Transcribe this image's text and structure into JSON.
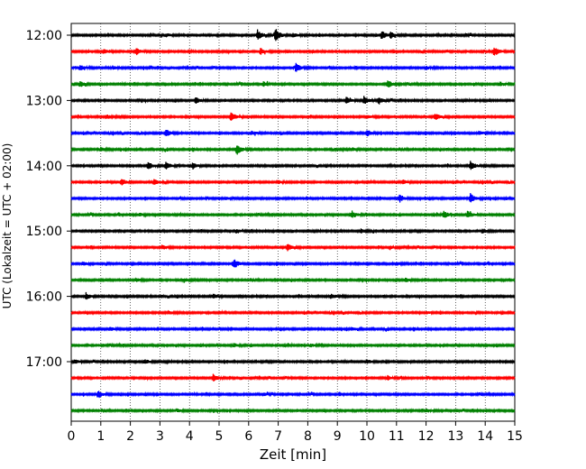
{
  "chart_data": {
    "type": "line",
    "title": "",
    "xlabel": "Zeit  [min]",
    "ylabel": "UTC (Lokalzeit = UTC + 02:00)",
    "xlim": [
      0,
      15
    ],
    "x_ticks": [
      0,
      1,
      2,
      3,
      4,
      5,
      6,
      7,
      8,
      9,
      10,
      11,
      12,
      13,
      14,
      15
    ],
    "y_tick_labels": [
      "12:00",
      "13:00",
      "14:00",
      "15:00",
      "16:00",
      "17:00"
    ],
    "grid": "vertical dotted lines at each minute",
    "colors": [
      "#000000",
      "#ff0000",
      "#0000ff",
      "#008000"
    ],
    "rows": [
      {
        "time": "12:00",
        "color": "#000000",
        "events": [
          [
            6.3,
            0.7
          ],
          [
            6.9,
            1.0
          ],
          [
            10.5,
            0.6
          ],
          [
            10.8,
            0.4
          ],
          [
            7.5,
            0.25
          ],
          [
            3.2,
            0.2
          ]
        ]
      },
      {
        "time": "12:15",
        "color": "#ff0000",
        "events": [
          [
            1.1,
            0.35
          ],
          [
            2.2,
            0.45
          ],
          [
            6.4,
            0.4
          ],
          [
            14.3,
            0.65
          ]
        ]
      },
      {
        "time": "12:30",
        "color": "#0000ff",
        "events": [
          [
            0.3,
            0.45
          ],
          [
            7.6,
            0.7
          ],
          [
            1.4,
            0.2
          ],
          [
            12.0,
            0.2
          ]
        ]
      },
      {
        "time": "12:45",
        "color": "#008000",
        "events": [
          [
            0.3,
            0.35
          ],
          [
            6.5,
            0.3
          ],
          [
            10.7,
            0.6
          ],
          [
            14.5,
            0.25
          ]
        ]
      },
      {
        "time": "13:00",
        "color": "#000000",
        "events": [
          [
            4.2,
            0.45
          ],
          [
            9.3,
            0.45
          ],
          [
            9.9,
            0.55
          ],
          [
            10.4,
            0.5
          ]
        ]
      },
      {
        "time": "13:15",
        "color": "#ff0000",
        "events": [
          [
            1.2,
            0.25
          ],
          [
            5.4,
            0.7
          ],
          [
            12.3,
            0.5
          ],
          [
            10.0,
            0.2
          ]
        ]
      },
      {
        "time": "13:30",
        "color": "#0000ff",
        "events": [
          [
            3.2,
            0.6
          ],
          [
            10.0,
            0.45
          ],
          [
            6.1,
            0.25
          ],
          [
            13.8,
            0.25
          ]
        ]
      },
      {
        "time": "13:45",
        "color": "#008000",
        "events": [
          [
            5.6,
            0.75
          ],
          [
            1.0,
            0.25
          ],
          [
            9.5,
            0.2
          ]
        ]
      },
      {
        "time": "14:00",
        "color": "#000000",
        "events": [
          [
            2.6,
            0.55
          ],
          [
            3.2,
            0.5
          ],
          [
            4.1,
            0.4
          ],
          [
            13.5,
            0.6
          ]
        ]
      },
      {
        "time": "14:15",
        "color": "#ff0000",
        "events": [
          [
            1.7,
            0.45
          ],
          [
            2.8,
            0.45
          ],
          [
            11.2,
            0.3
          ],
          [
            7.0,
            0.2
          ]
        ]
      },
      {
        "time": "14:30",
        "color": "#0000ff",
        "events": [
          [
            11.1,
            0.55
          ],
          [
            13.5,
            0.65
          ],
          [
            5.2,
            0.2
          ]
        ]
      },
      {
        "time": "14:45",
        "color": "#008000",
        "events": [
          [
            9.5,
            0.45
          ],
          [
            12.6,
            0.5
          ],
          [
            13.4,
            0.5
          ],
          [
            2.3,
            0.2
          ]
        ]
      },
      {
        "time": "15:00",
        "color": "#000000",
        "events": [
          [
            5.6,
            0.25
          ],
          [
            9.8,
            0.3
          ],
          [
            13.9,
            0.3
          ]
        ]
      },
      {
        "time": "15:15",
        "color": "#ff0000",
        "events": [
          [
            7.3,
            0.5
          ],
          [
            3.1,
            0.25
          ],
          [
            10.8,
            0.2
          ]
        ]
      },
      {
        "time": "15:30",
        "color": "#0000ff",
        "events": [
          [
            5.5,
            0.7
          ],
          [
            0.4,
            0.2
          ],
          [
            11.0,
            0.2
          ]
        ]
      },
      {
        "time": "15:45",
        "color": "#008000",
        "events": [
          [
            11.3,
            0.3
          ],
          [
            2.2,
            0.25
          ],
          [
            3.8,
            0.2
          ]
        ]
      },
      {
        "time": "16:00",
        "color": "#000000",
        "events": [
          [
            0.5,
            0.4
          ],
          [
            4.8,
            0.3
          ],
          [
            8.8,
            0.3
          ]
        ]
      },
      {
        "time": "16:15",
        "color": "#ff0000",
        "events": [
          [
            3.3,
            0.25
          ],
          [
            12.0,
            0.2
          ]
        ]
      },
      {
        "time": "16:30",
        "color": "#0000ff",
        "events": [
          [
            1.3,
            0.25
          ],
          [
            9.5,
            0.2
          ]
        ]
      },
      {
        "time": "16:45",
        "color": "#008000",
        "events": [
          [
            5.5,
            0.25
          ],
          [
            8.1,
            0.2
          ]
        ]
      },
      {
        "time": "17:00",
        "color": "#000000",
        "events": [
          [
            0.1,
            0.3
          ],
          [
            2.5,
            0.3
          ],
          [
            10.0,
            0.25
          ]
        ]
      },
      {
        "time": "17:15",
        "color": "#ff0000",
        "events": [
          [
            4.8,
            0.5
          ],
          [
            10.7,
            0.3
          ]
        ]
      },
      {
        "time": "17:30",
        "color": "#0000ff",
        "events": [
          [
            0.9,
            0.55
          ],
          [
            6.5,
            0.2
          ]
        ]
      },
      {
        "time": "17:45",
        "color": "#008000",
        "events": [
          [
            3.6,
            0.2
          ],
          [
            12.0,
            0.2
          ]
        ]
      }
    ]
  }
}
